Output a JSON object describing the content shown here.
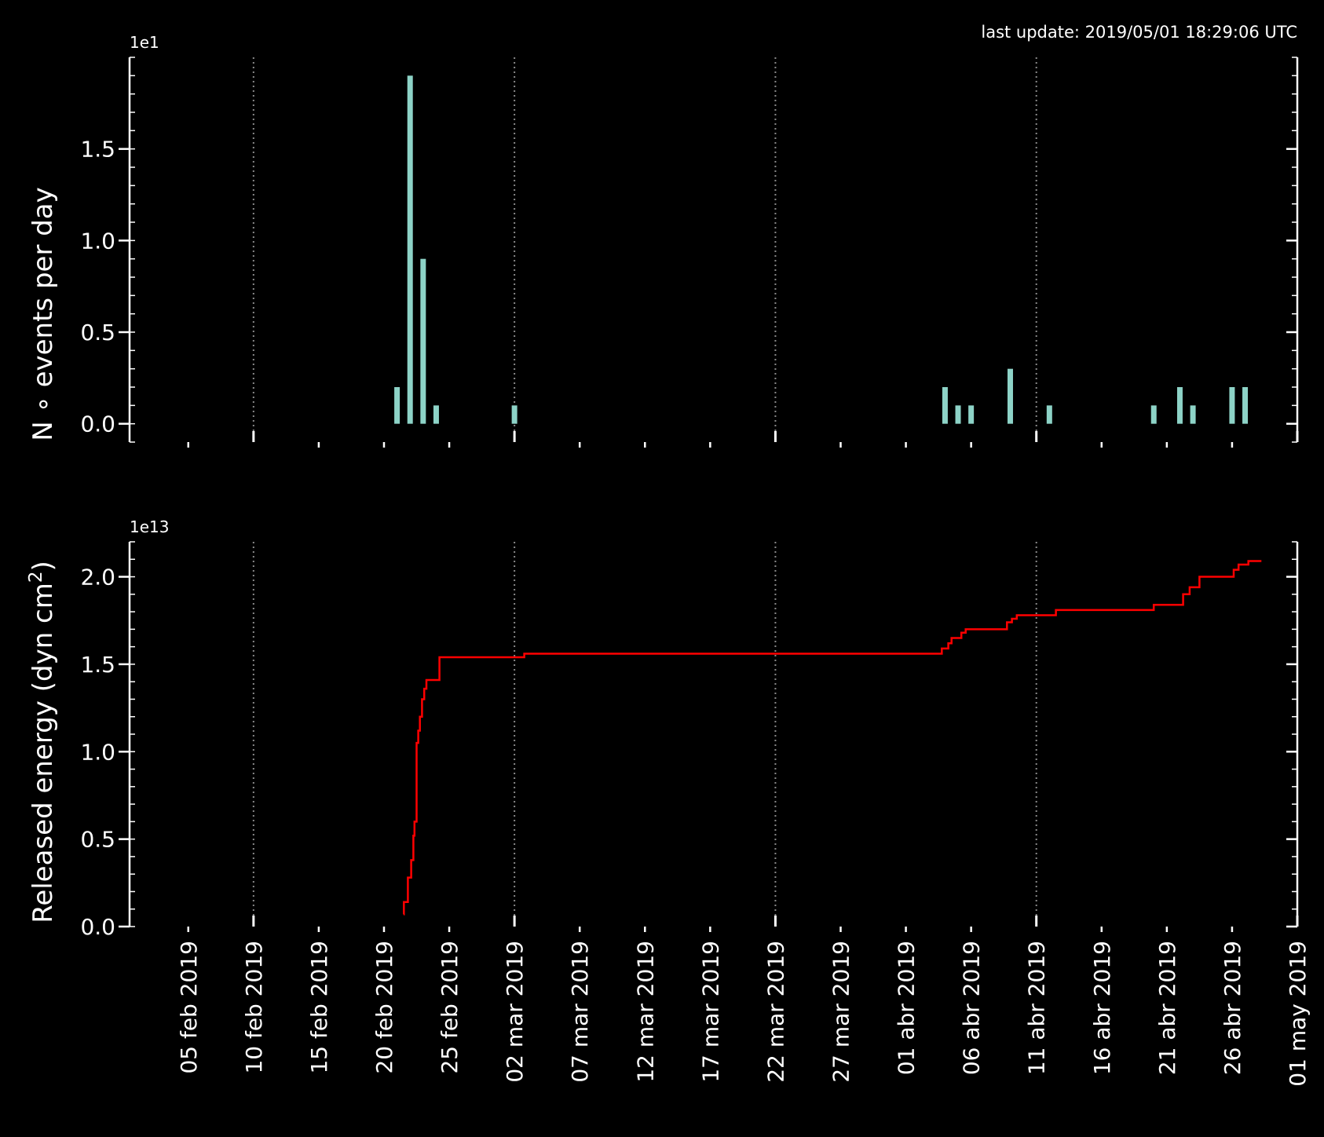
{
  "last_update": "last update: 2019/05/01 18:29:06 UTC",
  "colors": {
    "background": "#000000",
    "text": "#ffffff",
    "bars": "#8dd3c7",
    "line": "#ff0000",
    "grid": "#888888"
  },
  "chart_data": [
    {
      "type": "bar",
      "ylabel": "N$^\\circ$ events per day",
      "ylabel_display": "N ∘  events per day",
      "offset_text": "1e1",
      "yticks": [
        "0.0",
        "0.5",
        "1.0",
        "1.5"
      ],
      "ylim": [
        -0.1,
        2.0
      ],
      "x_dates": [
        "2019-02-21",
        "2019-02-22",
        "2019-02-23",
        "2019-02-24",
        "2019-03-02",
        "2019-04-04",
        "2019-04-05",
        "2019-04-06",
        "2019-04-09",
        "2019-04-12",
        "2019-04-20",
        "2019-04-22",
        "2019-04-23",
        "2019-04-26",
        "2019-04-27"
      ],
      "values": [
        0.2,
        1.9,
        0.9,
        0.1,
        0.1,
        0.2,
        0.1,
        0.1,
        0.3,
        0.1,
        0.1,
        0.2,
        0.1,
        0.2,
        0.2
      ],
      "grid": "vertical dotted"
    },
    {
      "type": "line",
      "ylabel": "Released energy (dyn cm$^2$)",
      "ylabel_display": {
        "main": "Released energy (dyn cm",
        "sup": "2",
        "end": ")"
      },
      "offset_text": "1e13",
      "yticks": [
        "0.0",
        "0.5",
        "1.0",
        "1.5",
        "2.0"
      ],
      "ylim": [
        0.0,
        2.2
      ],
      "step_series": [
        [
          "2019-02-21T12:00",
          0.07
        ],
        [
          "2019-02-21T12:30",
          0.14
        ],
        [
          "2019-02-21T20:00",
          0.28
        ],
        [
          "2019-02-22T02:00",
          0.38
        ],
        [
          "2019-02-22T06:00",
          0.52
        ],
        [
          "2019-02-22T08:00",
          0.6
        ],
        [
          "2019-02-22T12:00",
          1.05
        ],
        [
          "2019-02-22T15:00",
          1.12
        ],
        [
          "2019-02-22T18:00",
          1.2
        ],
        [
          "2019-02-22T22:00",
          1.3
        ],
        [
          "2019-02-23T02:00",
          1.36
        ],
        [
          "2019-02-23T06:00",
          1.41
        ],
        [
          "2019-02-24T06:00",
          1.54
        ],
        [
          "2019-03-02T18:00",
          1.56
        ],
        [
          "2019-04-03T18:00",
          1.59
        ],
        [
          "2019-04-04T06:00",
          1.62
        ],
        [
          "2019-04-04T12:00",
          1.65
        ],
        [
          "2019-04-05T06:00",
          1.68
        ],
        [
          "2019-04-05T14:00",
          1.7
        ],
        [
          "2019-04-08T18:00",
          1.74
        ],
        [
          "2019-04-09T03:00",
          1.76
        ],
        [
          "2019-04-09T12:00",
          1.78
        ],
        [
          "2019-04-12T12:00",
          1.81
        ],
        [
          "2019-04-20T00:00",
          1.84
        ],
        [
          "2019-04-22T06:00",
          1.9
        ],
        [
          "2019-04-22T18:00",
          1.94
        ],
        [
          "2019-04-23T12:00",
          2.0
        ],
        [
          "2019-04-26T03:00",
          2.04
        ],
        [
          "2019-04-26T12:00",
          2.07
        ],
        [
          "2019-04-27T06:00",
          2.09
        ],
        [
          "2019-04-28T06:00",
          2.09
        ]
      ],
      "grid": "vertical dotted"
    }
  ],
  "x_axis": {
    "range": [
      "2019-01-31T12:00",
      "2019-05-01"
    ],
    "tick_dates": [
      "2019-02-05",
      "2019-02-10",
      "2019-02-15",
      "2019-02-20",
      "2019-02-25",
      "2019-03-02",
      "2019-03-07",
      "2019-03-12",
      "2019-03-17",
      "2019-03-22",
      "2019-03-27",
      "2019-04-01",
      "2019-04-06",
      "2019-04-11",
      "2019-04-16",
      "2019-04-21",
      "2019-04-26",
      "2019-05-01"
    ],
    "tick_labels": [
      "05 feb 2019",
      "10 feb 2019",
      "15 feb 2019",
      "20 feb 2019",
      "25 feb 2019",
      "02 mar 2019",
      "07 mar 2019",
      "12 mar 2019",
      "17 mar 2019",
      "22 mar 2019",
      "27 mar 2019",
      "01 abr 2019",
      "06 abr 2019",
      "11 abr 2019",
      "16 abr 2019",
      "21 abr 2019",
      "26 abr 2019",
      "01 may 2019"
    ],
    "grid_dates": [
      "2019-02-10",
      "2019-03-02",
      "2019-03-22",
      "2019-04-11",
      "2019-05-01"
    ]
  }
}
